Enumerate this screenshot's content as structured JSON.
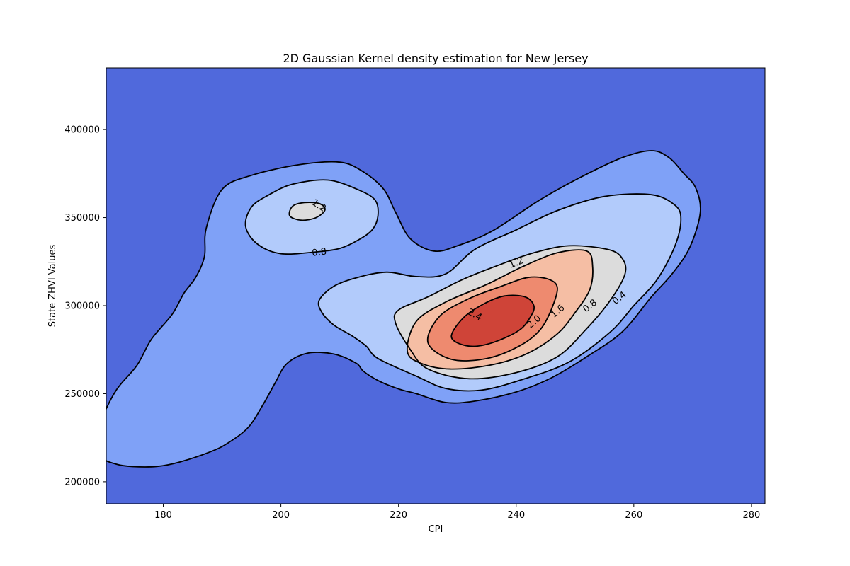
{
  "chart_data": {
    "type": "contour",
    "title": "2D Gaussian Kernel density estimation for New Jersey",
    "xlabel": "CPI",
    "ylabel": "State ZHVI Values",
    "xlim": [
      170.3,
      282.3
    ],
    "ylim": [
      187500,
      435000
    ],
    "xticks": [
      180,
      200,
      220,
      240,
      260,
      280
    ],
    "yticks": [
      200000,
      250000,
      300000,
      350000,
      400000
    ],
    "colormap": "coolwarm",
    "levels": [
      0,
      0.4,
      0.8,
      1.2,
      1.6,
      2.0,
      2.4,
      2.8
    ],
    "fill_colors": [
      "#5069dc",
      "#7fa1f7",
      "#b2cbfb",
      "#dcdcdc",
      "#f5bea4",
      "#ee8a6f",
      "#cf4438"
    ],
    "contour_labels": [
      {
        "text": "0.4",
        "x": 257.5,
        "y": 304500,
        "angle": -38
      },
      {
        "text": "0.8",
        "x": 252.5,
        "y": 300000,
        "angle": -38
      },
      {
        "text": "0.8",
        "x": 206.5,
        "y": 330500,
        "angle": -7
      },
      {
        "text": "1.2",
        "x": 206.5,
        "y": 357000,
        "angle": 33
      },
      {
        "text": "1.2",
        "x": 240.0,
        "y": 324500,
        "angle": -22
      },
      {
        "text": "1.6",
        "x": 247.0,
        "y": 297000,
        "angle": -40
      },
      {
        "text": "2.0",
        "x": 243.0,
        "y": 291000,
        "angle": -40
      },
      {
        "text": "2.4",
        "x": 233.0,
        "y": 295000,
        "angle": 28
      }
    ],
    "density_contours": [
      {
        "level": 0.4,
        "fill": "#7fa1f7",
        "polygons": [
          [
            [
              174.8,
              208600
            ],
            [
              179.0,
              208700
            ],
            [
              183.0,
              211400
            ],
            [
              188.0,
              217000
            ],
            [
              191.0,
              222000
            ],
            [
              194.5,
              231000
            ],
            [
              197.0,
              244000
            ],
            [
              199.0,
              256000
            ],
            [
              201.0,
              267000
            ],
            [
              204.5,
              273000
            ],
            [
              209.0,
              272500
            ],
            [
              212.8,
              267300
            ],
            [
              214.0,
              262800
            ],
            [
              216.5,
              257500
            ],
            [
              220.0,
              252700
            ],
            [
              223.0,
              250000
            ],
            [
              228.0,
              245000
            ],
            [
              233.0,
              245800
            ],
            [
              240.0,
              251000
            ],
            [
              246.0,
              259000
            ],
            [
              252.0,
              271000
            ],
            [
              258.0,
              285000
            ],
            [
              263.0,
              305000
            ],
            [
              266.5,
              318000
            ],
            [
              269.5,
              333000
            ],
            [
              271.3,
              353000
            ],
            [
              270.5,
              367000
            ],
            [
              268.5,
              375000
            ],
            [
              266.0,
              384000
            ],
            [
              263.0,
              388000
            ],
            [
              258.0,
              384000
            ],
            [
              251.0,
              373000
            ],
            [
              244.0,
              360000
            ],
            [
              236.0,
              342500
            ],
            [
              230.0,
              334000
            ],
            [
              226.0,
              331000
            ],
            [
              222.0,
              338000
            ],
            [
              219.5,
              353000
            ],
            [
              217.5,
              366000
            ],
            [
              214.0,
              376000
            ],
            [
              210.0,
              381500
            ],
            [
              203.0,
              380000
            ],
            [
              195.0,
              374000
            ],
            [
              190.0,
              366000
            ],
            [
              187.3,
              344000
            ],
            [
              187.0,
              328000
            ],
            [
              185.5,
              316000
            ],
            [
              183.5,
              307000
            ],
            [
              181.5,
              295000
            ],
            [
              178.0,
              281000
            ],
            [
              175.5,
              266000
            ],
            [
              172.0,
              252000
            ],
            [
              169.5,
              235000
            ],
            [
              168.8,
              224000
            ],
            [
              169.5,
              214000
            ],
            [
              172.0,
              210000
            ]
          ]
        ]
      },
      {
        "level": 0.8,
        "fill": "#b2cbfb",
        "polygons": [
          [
            [
              200.0,
              329500
            ],
            [
              206.0,
              330500
            ],
            [
              210.0,
              332500
            ],
            [
              213.0,
              337000
            ],
            [
              215.5,
              343000
            ],
            [
              216.5,
              351000
            ],
            [
              216.0,
              360000
            ],
            [
              213.0,
              366000
            ],
            [
              208.0,
              371300
            ],
            [
              202.0,
              369000
            ],
            [
              198.0,
              363000
            ],
            [
              195.0,
              356000
            ],
            [
              194.0,
              345000
            ],
            [
              196.0,
              335000
            ]
          ],
          [
            [
              216.5,
              270000
            ],
            [
              223.0,
              260000
            ],
            [
              228.0,
              253000
            ],
            [
              234.0,
              252000
            ],
            [
              241.0,
              258000
            ],
            [
              249.0,
              268000
            ],
            [
              256.0,
              285000
            ],
            [
              260.0,
              300000
            ],
            [
              264.0,
              315000
            ],
            [
              267.0,
              334000
            ],
            [
              268.0,
              349000
            ],
            [
              267.0,
              357000
            ],
            [
              263.0,
              363000
            ],
            [
              255.0,
              362000
            ],
            [
              247.0,
              354000
            ],
            [
              240.0,
              343000
            ],
            [
              233.0,
              332000
            ],
            [
              228.0,
              318000
            ],
            [
              223.0,
              316500
            ],
            [
              218.0,
              319000
            ],
            [
              213.0,
              316000
            ],
            [
              209.0,
              311000
            ],
            [
              206.5,
              303000
            ],
            [
              207.0,
              296000
            ],
            [
              209.0,
              289000
            ],
            [
              212.0,
              283000
            ],
            [
              214.5,
              277000
            ]
          ]
        ]
      },
      {
        "level": 1.2,
        "fill": "#dcdcdc",
        "polygons": [
          [
            [
              201.5,
              351000
            ],
            [
              203.5,
              348500
            ],
            [
              206.0,
              350000
            ],
            [
              207.5,
              354500
            ],
            [
              206.5,
              358000
            ],
            [
              204.0,
              358500
            ],
            [
              202.0,
              356500
            ]
          ],
          [
            [
              219.5,
              290000
            ],
            [
              222.0,
              275000
            ],
            [
              225.0,
              264000
            ],
            [
              232.0,
              258500
            ],
            [
              240.0,
              262000
            ],
            [
              247.0,
              271000
            ],
            [
              252.0,
              287000
            ],
            [
              256.0,
              303000
            ],
            [
              258.5,
              318000
            ],
            [
              258.0,
              327000
            ],
            [
              255.5,
              332000
            ],
            [
              249.0,
              334000
            ],
            [
              243.0,
              330000
            ],
            [
              237.0,
              323000
            ],
            [
              231.0,
              315000
            ],
            [
              225.0,
              305000
            ],
            [
              220.0,
              297500
            ]
          ]
        ]
      },
      {
        "level": 1.6,
        "fill": "#f5bea4",
        "polygons": [
          [
            [
              221.5,
              274000
            ],
            [
              224.0,
              267000
            ],
            [
              229.0,
              264000
            ],
            [
              236.0,
              266500
            ],
            [
              242.0,
              273000
            ],
            [
              247.0,
              284000
            ],
            [
              250.0,
              296000
            ],
            [
              252.5,
              309000
            ],
            [
              253.0,
              322000
            ],
            [
              252.0,
              331000
            ],
            [
              247.0,
              330000
            ],
            [
              241.0,
              322000
            ],
            [
              235.0,
              312000
            ],
            [
              228.0,
              302000
            ],
            [
              223.0,
              291000
            ]
          ]
        ]
      },
      {
        "level": 2.0,
        "fill": "#ee8a6f",
        "polygons": [
          [
            [
              225.0,
              279000
            ],
            [
              229.0,
              269500
            ],
            [
              235.0,
              270000
            ],
            [
              240.5,
              277000
            ],
            [
              244.0,
              286000
            ],
            [
              246.0,
              298000
            ],
            [
              247.0,
              310000
            ],
            [
              245.5,
              315000
            ],
            [
              242.0,
              316000
            ],
            [
              237.5,
              311000
            ],
            [
              232.0,
              304000
            ],
            [
              227.0,
              294000
            ]
          ]
        ]
      },
      {
        "level": 2.4,
        "fill": "#cf4438",
        "polygons": [
          [
            [
              229.0,
              282000
            ],
            [
              232.0,
              277000
            ],
            [
              236.0,
              279000
            ],
            [
              240.5,
              286000
            ],
            [
              242.5,
              294000
            ],
            [
              243.0,
              300000
            ],
            [
              241.5,
              305000
            ],
            [
              238.0,
              305500
            ],
            [
              234.5,
              301000
            ],
            [
              231.0,
              293000
            ]
          ]
        ]
      }
    ]
  }
}
